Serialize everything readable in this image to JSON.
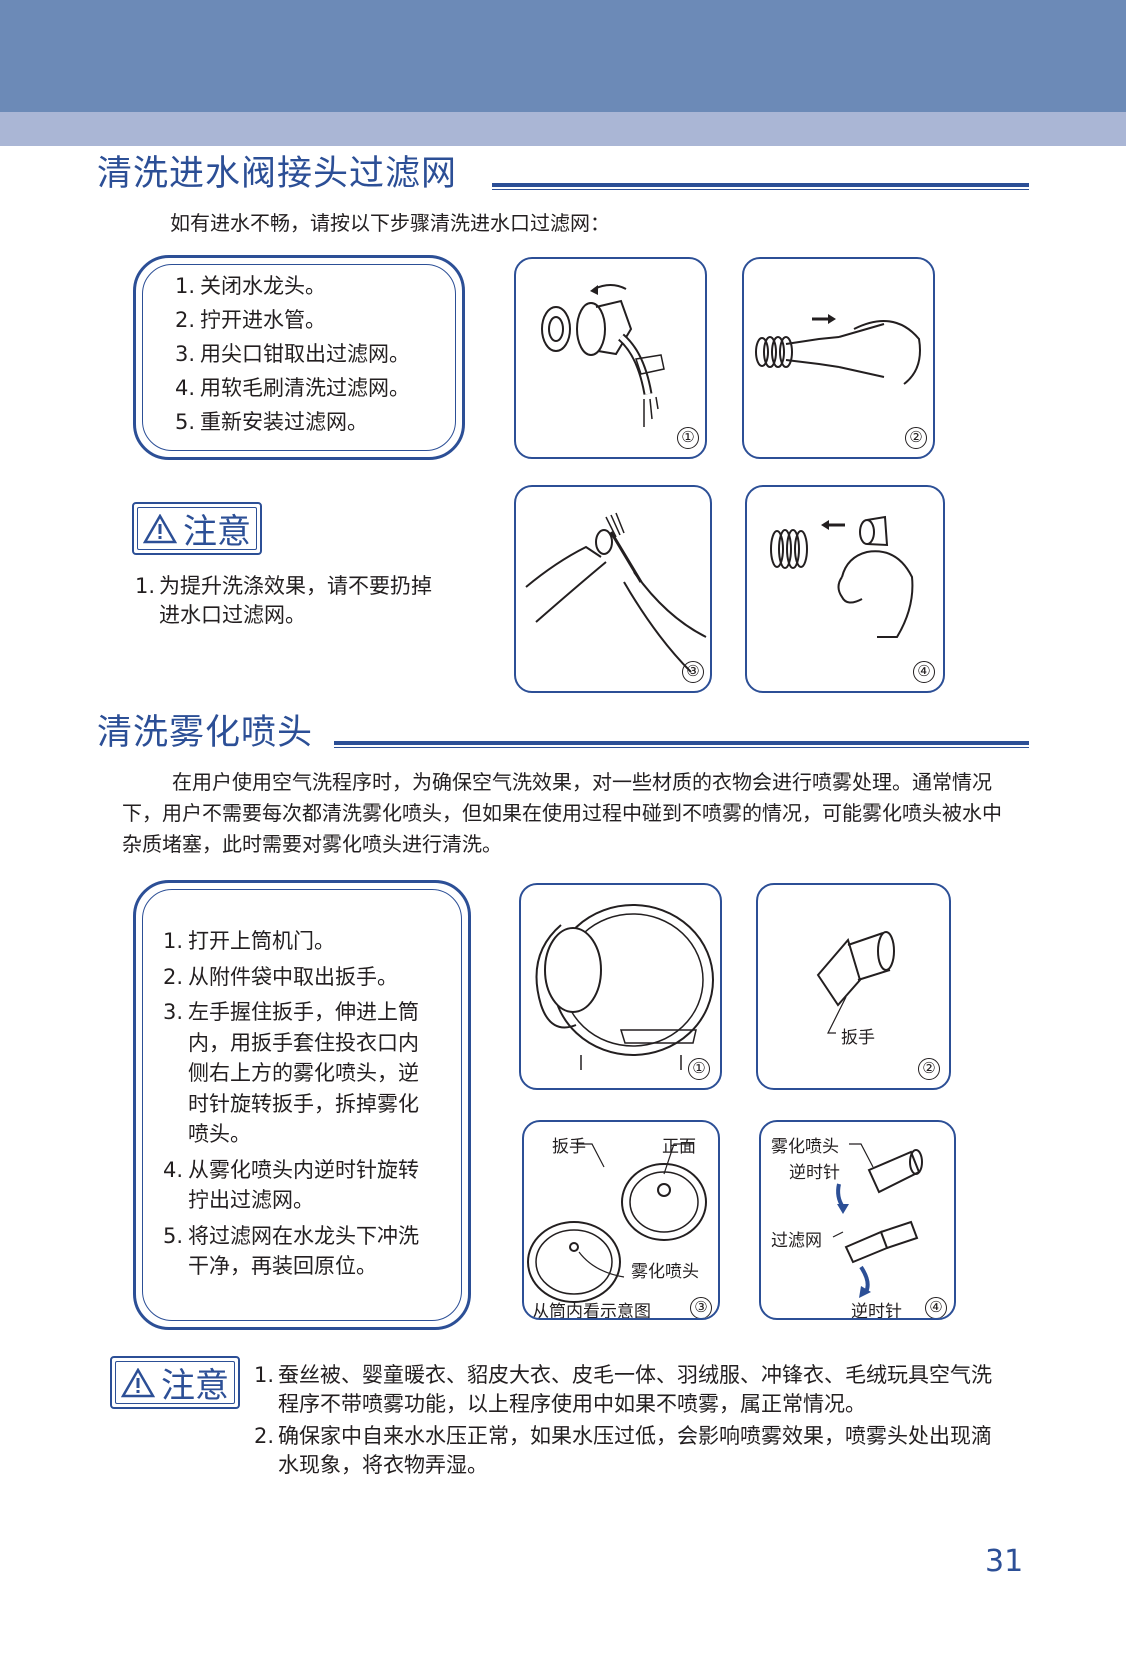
{
  "section1": {
    "title": "清洗进水阀接头过滤网",
    "intro": "如有进水不畅，请按以下步骤清洗进水口过滤网：",
    "steps": [
      {
        "num": "1.",
        "text": "关闭水龙头。"
      },
      {
        "num": "2.",
        "text": "拧开进水管。"
      },
      {
        "num": "3.",
        "text": "用尖口钳取出过滤网。"
      },
      {
        "num": "4.",
        "text": "用软毛刷清洗过滤网。"
      },
      {
        "num": "5.",
        "text": "重新安装过滤网。"
      }
    ],
    "caution_label": "注意",
    "caution_items": [
      {
        "num": "1.",
        "text": "为提升洗涤效果，请不要扔掉进水口过滤网。"
      }
    ],
    "figure_numbers": [
      "①",
      "②",
      "③",
      "④"
    ]
  },
  "section2": {
    "title": "清洗雾化喷头",
    "intro": "在用户使用空气洗程序时，为确保空气洗效果，对一些材质的衣物会进行喷雾处理。通常情况下，用户不需要每次都清洗雾化喷头，但如果在使用过程中碰到不喷雾的情况，可能雾化喷头被水中杂质堵塞，此时需要对雾化喷头进行清洗。",
    "steps": [
      {
        "num": "1.",
        "text": "打开上筒机门。"
      },
      {
        "num": "2.",
        "text": "从附件袋中取出扳手。"
      },
      {
        "num": "3.",
        "text": "左手握住扳手，伸进上筒内，用扳手套住投衣口内侧右上方的雾化喷头，逆时针旋转扳手，拆掉雾化喷头。"
      },
      {
        "num": "4.",
        "text": "从雾化喷头内逆时针旋转拧出过滤网。"
      },
      {
        "num": "5.",
        "text": "将过滤网在水龙头下冲洗干净，再装回原位。"
      }
    ],
    "figure_labels": {
      "wrench": "扳手",
      "wrench2": "扳手",
      "front": "正面",
      "nozzle": "雾化喷头",
      "nozzle2": "雾化喷头",
      "inside_view": "从筒内看示意图",
      "ccw1": "逆时针",
      "filter": "过滤网",
      "ccw2": "逆时针"
    },
    "figure_numbers": [
      "①",
      "②",
      "③",
      "④"
    ],
    "caution_label": "注意",
    "caution_items": [
      {
        "num": "1.",
        "text": "蚕丝被、婴童暖衣、貂皮大衣、皮毛一体、羽绒服、冲锋衣、毛绒玩具空气洗程序不带喷雾功能，以上程序使用中如果不喷雾，属正常情况。"
      },
      {
        "num": "2.",
        "text": "确保家中自来水水压正常，如果水压过低，会影响喷雾效果，喷雾头处出现滴水现象，将衣物弄湿。"
      }
    ]
  },
  "page_number": "31",
  "colors": {
    "accent": "#2c4f96",
    "band_dark": "#6c8ab7",
    "band_light": "#aab6d5"
  }
}
